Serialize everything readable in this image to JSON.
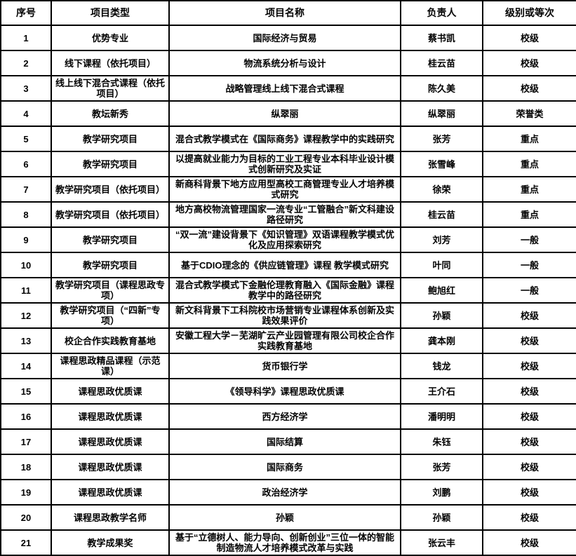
{
  "table": {
    "columns": [
      "序号",
      "项目类型",
      "项目名称",
      "负责人",
      "级别或等次"
    ],
    "column_keys": [
      "index",
      "type",
      "name",
      "leader",
      "level"
    ],
    "border_color": "#000000",
    "text_color": "#000000",
    "background_color": "#ffffff",
    "rows": [
      [
        "1",
        "优势专业",
        "国际经济与贸易",
        "蔡书凯",
        "校级"
      ],
      [
        "2",
        "线下课程（依托项目）",
        "物流系统分析与设计",
        "桂云苗",
        "校级"
      ],
      [
        "3",
        "线上线下混合式课程（依托项目）",
        "战略管理线上线下混合式课程",
        "陈久美",
        "校级"
      ],
      [
        "4",
        "教坛新秀",
        "纵翠丽",
        "纵翠丽",
        "荣誉类"
      ],
      [
        "5",
        "教学研究项目",
        "混合式教学模式在《国际商务》课程教学中的实践研究",
        "张芳",
        "重点"
      ],
      [
        "6",
        "教学研究项目",
        "以提高就业能力为目标的工业工程专业本科毕业设计模式创新研究及实证",
        "张雪峰",
        "重点"
      ],
      [
        "7",
        "教学研究项目（依托项目）",
        "新商科背景下地方应用型高校工商管理专业人才培养模式研究",
        "徐荣",
        "重点"
      ],
      [
        "8",
        "教学研究项目（依托项目）",
        "地方高校物流管理国家一流专业“工管融合”新文科建设路径研究",
        "桂云苗",
        "重点"
      ],
      [
        "9",
        "教学研究项目",
        "“双一流”建设背景下《知识管理》双语课程教学模式优化及应用探索研究",
        "刘芳",
        "一般"
      ],
      [
        "10",
        "教学研究项目",
        "基于CDIO理念的《供应链管理》课程 教学模式研究",
        "叶同",
        "一般"
      ],
      [
        "11",
        "教学研究项目（课程思政专项）",
        "混合式教学模式下金融伦理教育融入《国际金融》课程教学中的路径研究",
        "鲍旭红",
        "一般"
      ],
      [
        "12",
        "教学研究项目（“四新”专项）",
        "新文科背景下工科院校市场营销专业课程体系创新及实践效果评价",
        "孙颖",
        "校级"
      ],
      [
        "13",
        "校企合作实践教育基地",
        "安徽工程大学－芜湖旷云产业园管理有限公司校企合作实践教育基地",
        "龚本刚",
        "校级"
      ],
      [
        "14",
        "课程思政精品课程（示范课）",
        "货币银行学",
        "钱龙",
        "校级"
      ],
      [
        "15",
        "课程思政优质课",
        "《领导科学》课程思政优质课",
        "王介石",
        "校级"
      ],
      [
        "16",
        "课程思政优质课",
        "西方经济学",
        "潘明明",
        "校级"
      ],
      [
        "17",
        "课程思政优质课",
        "国际结算",
        "朱钰",
        "校级"
      ],
      [
        "18",
        "课程思政优质课",
        "国际商务",
        "张芳",
        "校级"
      ],
      [
        "19",
        "课程思政优质课",
        "政治经济学",
        "刘鹏",
        "校级"
      ],
      [
        "20",
        "课程思政教学名师",
        "孙颖",
        "孙颖",
        "校级"
      ],
      [
        "21",
        "教学成果奖",
        "基于“立德树人、能力导向、创新创业”三位一体的智能制造物流人才培养模式改革与实践",
        "张云丰",
        "校级"
      ]
    ]
  }
}
